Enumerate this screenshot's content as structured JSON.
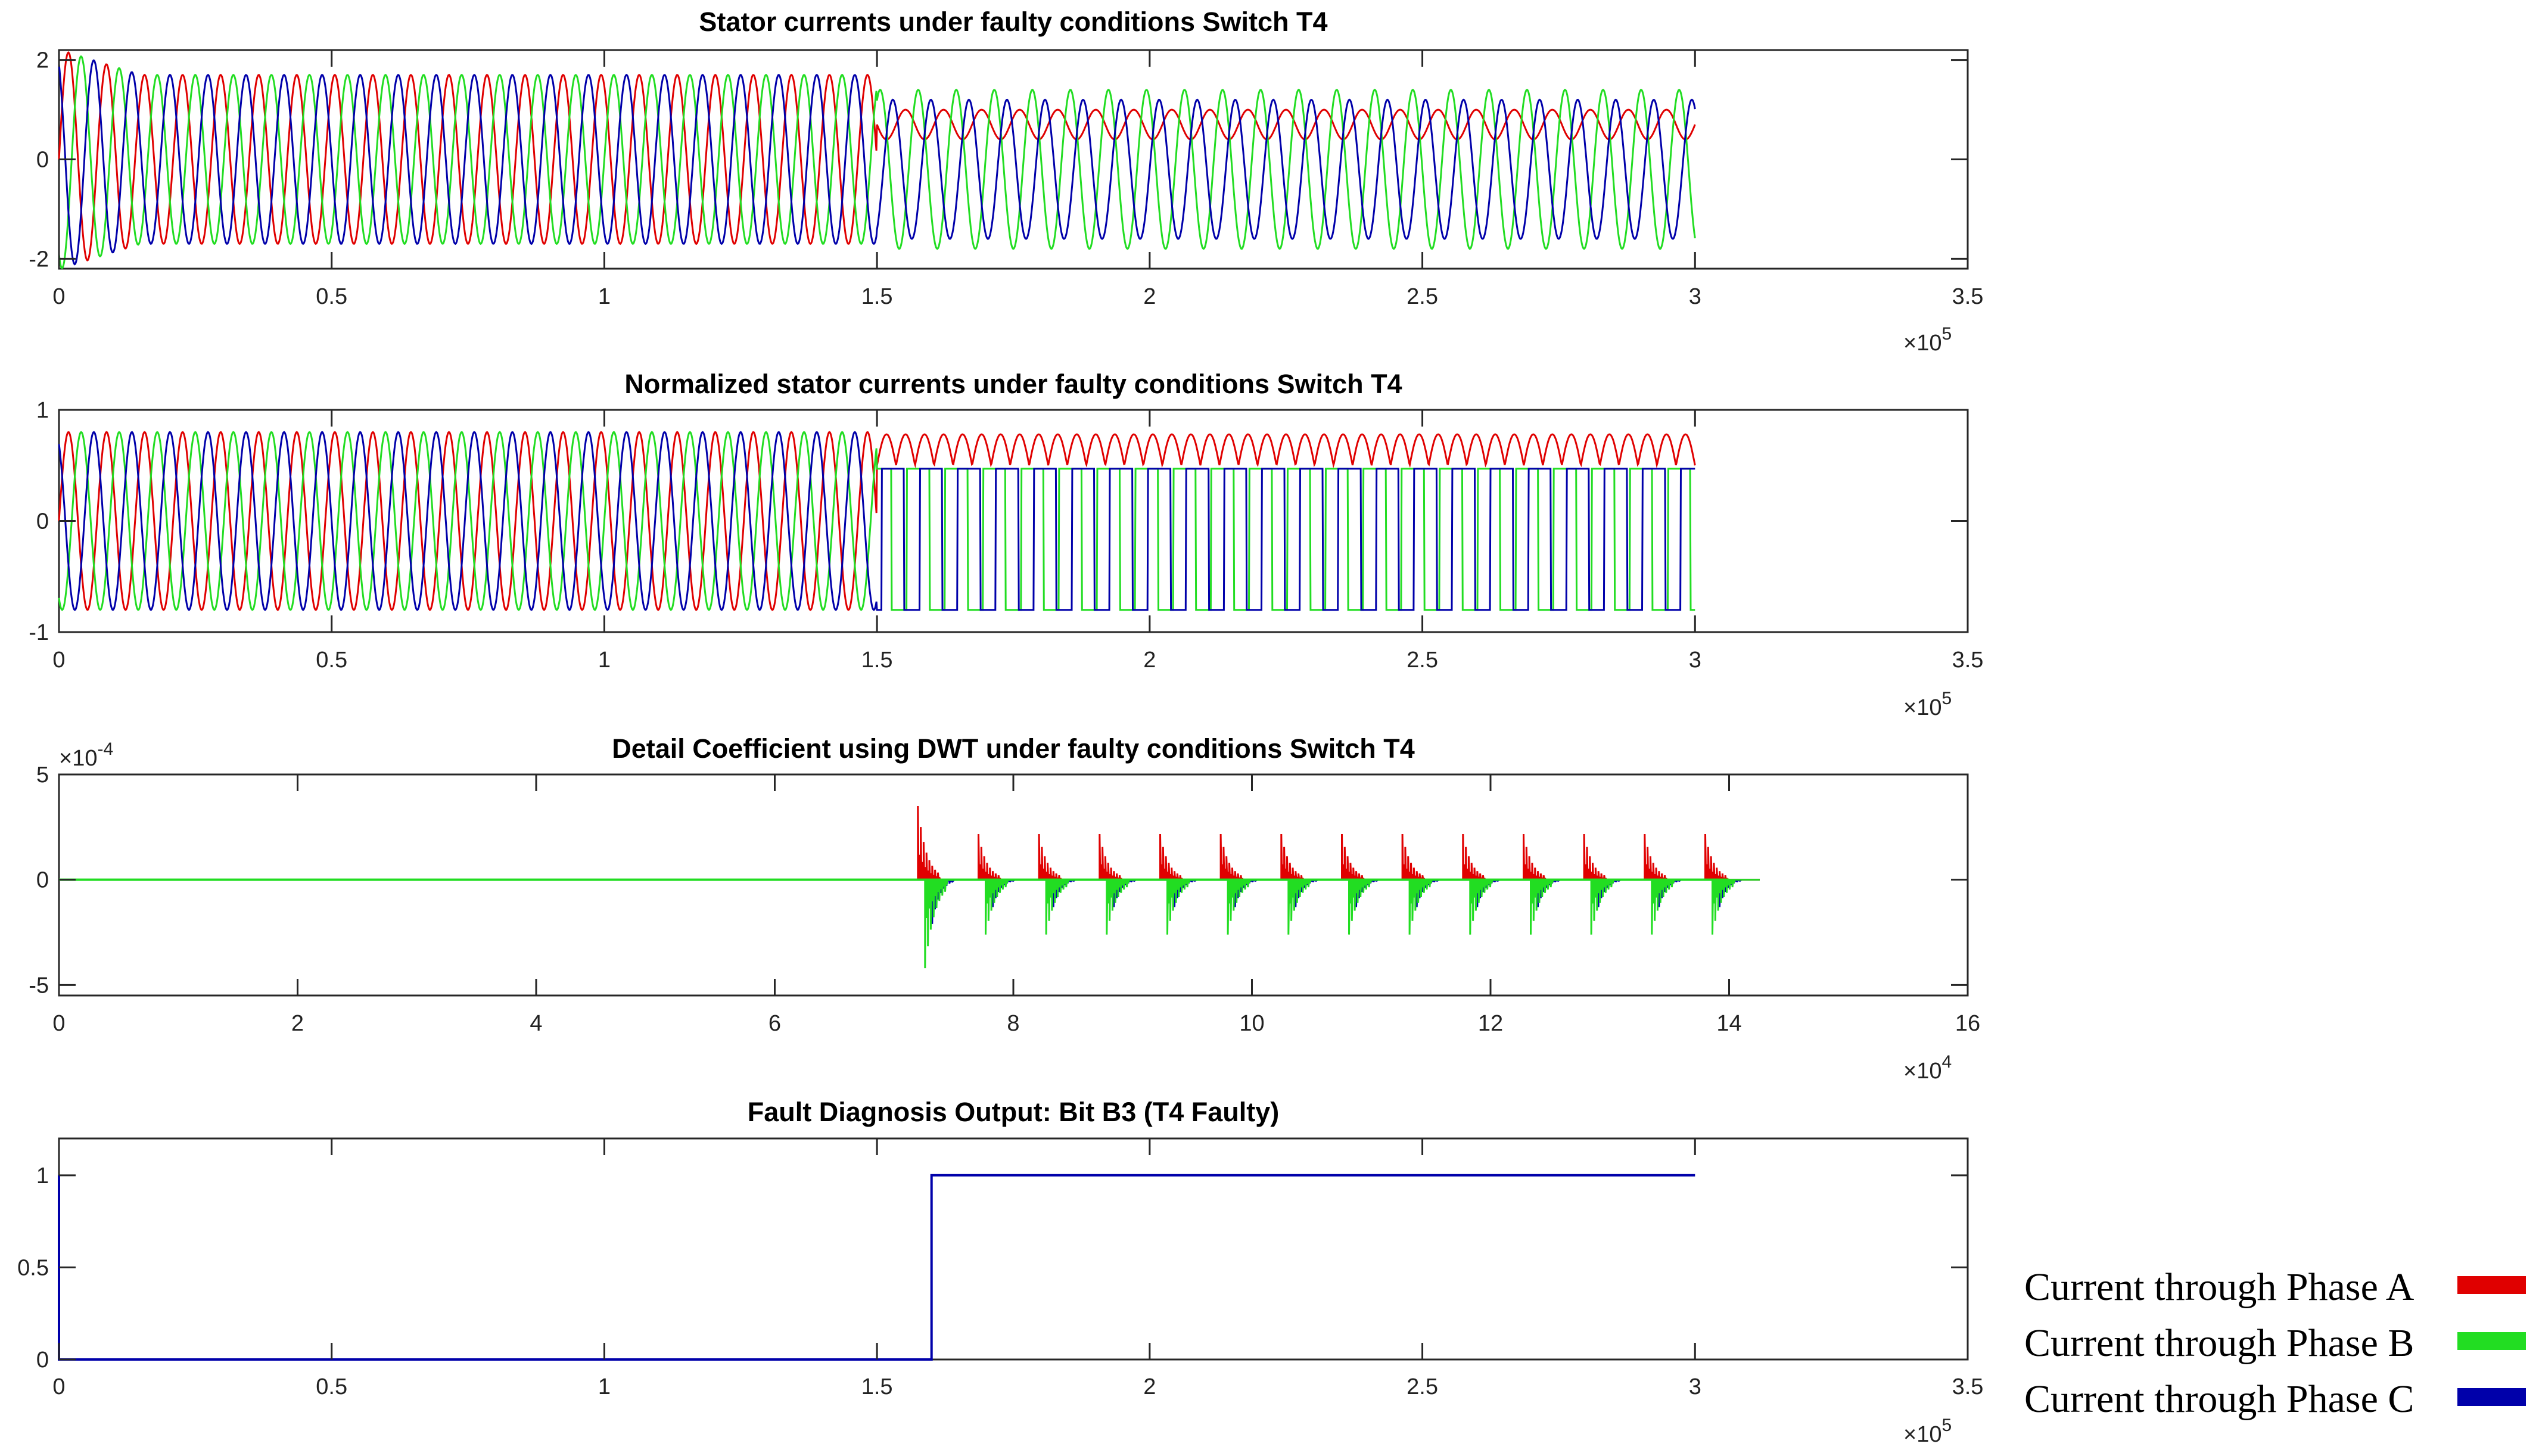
{
  "chart_data": [
    {
      "type": "line",
      "title": "Stator currents under faulty conditions Switch T4",
      "xlim": [
        0,
        3.5
      ],
      "ylim": [
        -2.2,
        2.2
      ],
      "x_ticks": [
        "0",
        "0.5",
        "1",
        "1.5",
        "2",
        "2.5",
        "3",
        "3.5"
      ],
      "y_ticks": [
        "-2",
        "0",
        "2"
      ],
      "y_tick_values": [
        -2,
        0,
        2
      ],
      "x_multiplier_base": "×10",
      "x_multiplier_exp": "5",
      "fault_onset_x": 1.5,
      "signal_end_x": 3.0,
      "cycles": 43,
      "healthy_amplitude": 1.7,
      "series": [
        {
          "name": "Current through Phase A",
          "color": "#e00000",
          "faulty_offset": 0.7,
          "faulty_amplitude": 0.3
        },
        {
          "name": "Current through Phase B",
          "color": "#22dd22",
          "faulty_offset": -0.2,
          "faulty_amplitude": 1.6
        },
        {
          "name": "Current through Phase C",
          "color": "#0000aa",
          "faulty_offset": -0.2,
          "faulty_amplitude": 1.4
        }
      ]
    },
    {
      "type": "line",
      "title": "Normalized stator currents under faulty conditions Switch T4",
      "xlim": [
        0,
        3.5
      ],
      "ylim": [
        -1,
        1
      ],
      "x_ticks": [
        "0",
        "0.5",
        "1",
        "1.5",
        "2",
        "2.5",
        "3",
        "3.5"
      ],
      "y_ticks": [
        "-1",
        "0",
        "1"
      ],
      "y_tick_values": [
        -1,
        0,
        1
      ],
      "x_multiplier_base": "×10",
      "x_multiplier_exp": "5",
      "fault_onset_x": 1.5,
      "signal_end_x": 3.0,
      "cycles": 43,
      "healthy_amplitude": 0.8
    },
    {
      "type": "line",
      "title": "Detail Coefficient using DWT under faulty conditions Switch T4",
      "xlim": [
        0,
        16
      ],
      "ylim": [
        -5.5,
        5
      ],
      "x_ticks": [
        "0",
        "2",
        "4",
        "6",
        "8",
        "10",
        "12",
        "14",
        "16"
      ],
      "y_ticks": [
        "-5",
        "0",
        "5"
      ],
      "y_tick_values": [
        -5,
        0,
        5
      ],
      "x_multiplier_base": "×10",
      "x_multiplier_exp": "4",
      "y_multiplier_base": "×10",
      "y_multiplier_exp": "-4",
      "burst_start_x": 7.2,
      "burst_end_x": 13.8,
      "burst_count": 14,
      "peak_positive": 3.5,
      "peak_negative": -4.2
    },
    {
      "type": "line",
      "title": "Fault Diagnosis Output: Bit B3 (T4 Faulty)",
      "xlim": [
        0,
        3.5
      ],
      "ylim": [
        0,
        1.2
      ],
      "x_ticks": [
        "0",
        "0.5",
        "1",
        "1.5",
        "2",
        "2.5",
        "3",
        "3.5"
      ],
      "y_ticks": [
        "0",
        "0.5",
        "1"
      ],
      "y_tick_values": [
        0,
        0.5,
        1
      ],
      "x_multiplier_base": "×10",
      "x_multiplier_exp": "5",
      "series": [
        {
          "color": "#0000aa",
          "x": [
            0,
            0,
            1.6,
            1.6,
            3.0
          ],
          "y": [
            1.0,
            0,
            0,
            1,
            1
          ]
        }
      ]
    }
  ],
  "legend": {
    "placement": "bottom-right",
    "items": [
      {
        "label": "Current through Phase A",
        "color": "#e00000"
      },
      {
        "label": "Current through Phase B",
        "color": "#22dd22"
      },
      {
        "label": "Current through Phase C",
        "color": "#0000aa"
      }
    ]
  }
}
